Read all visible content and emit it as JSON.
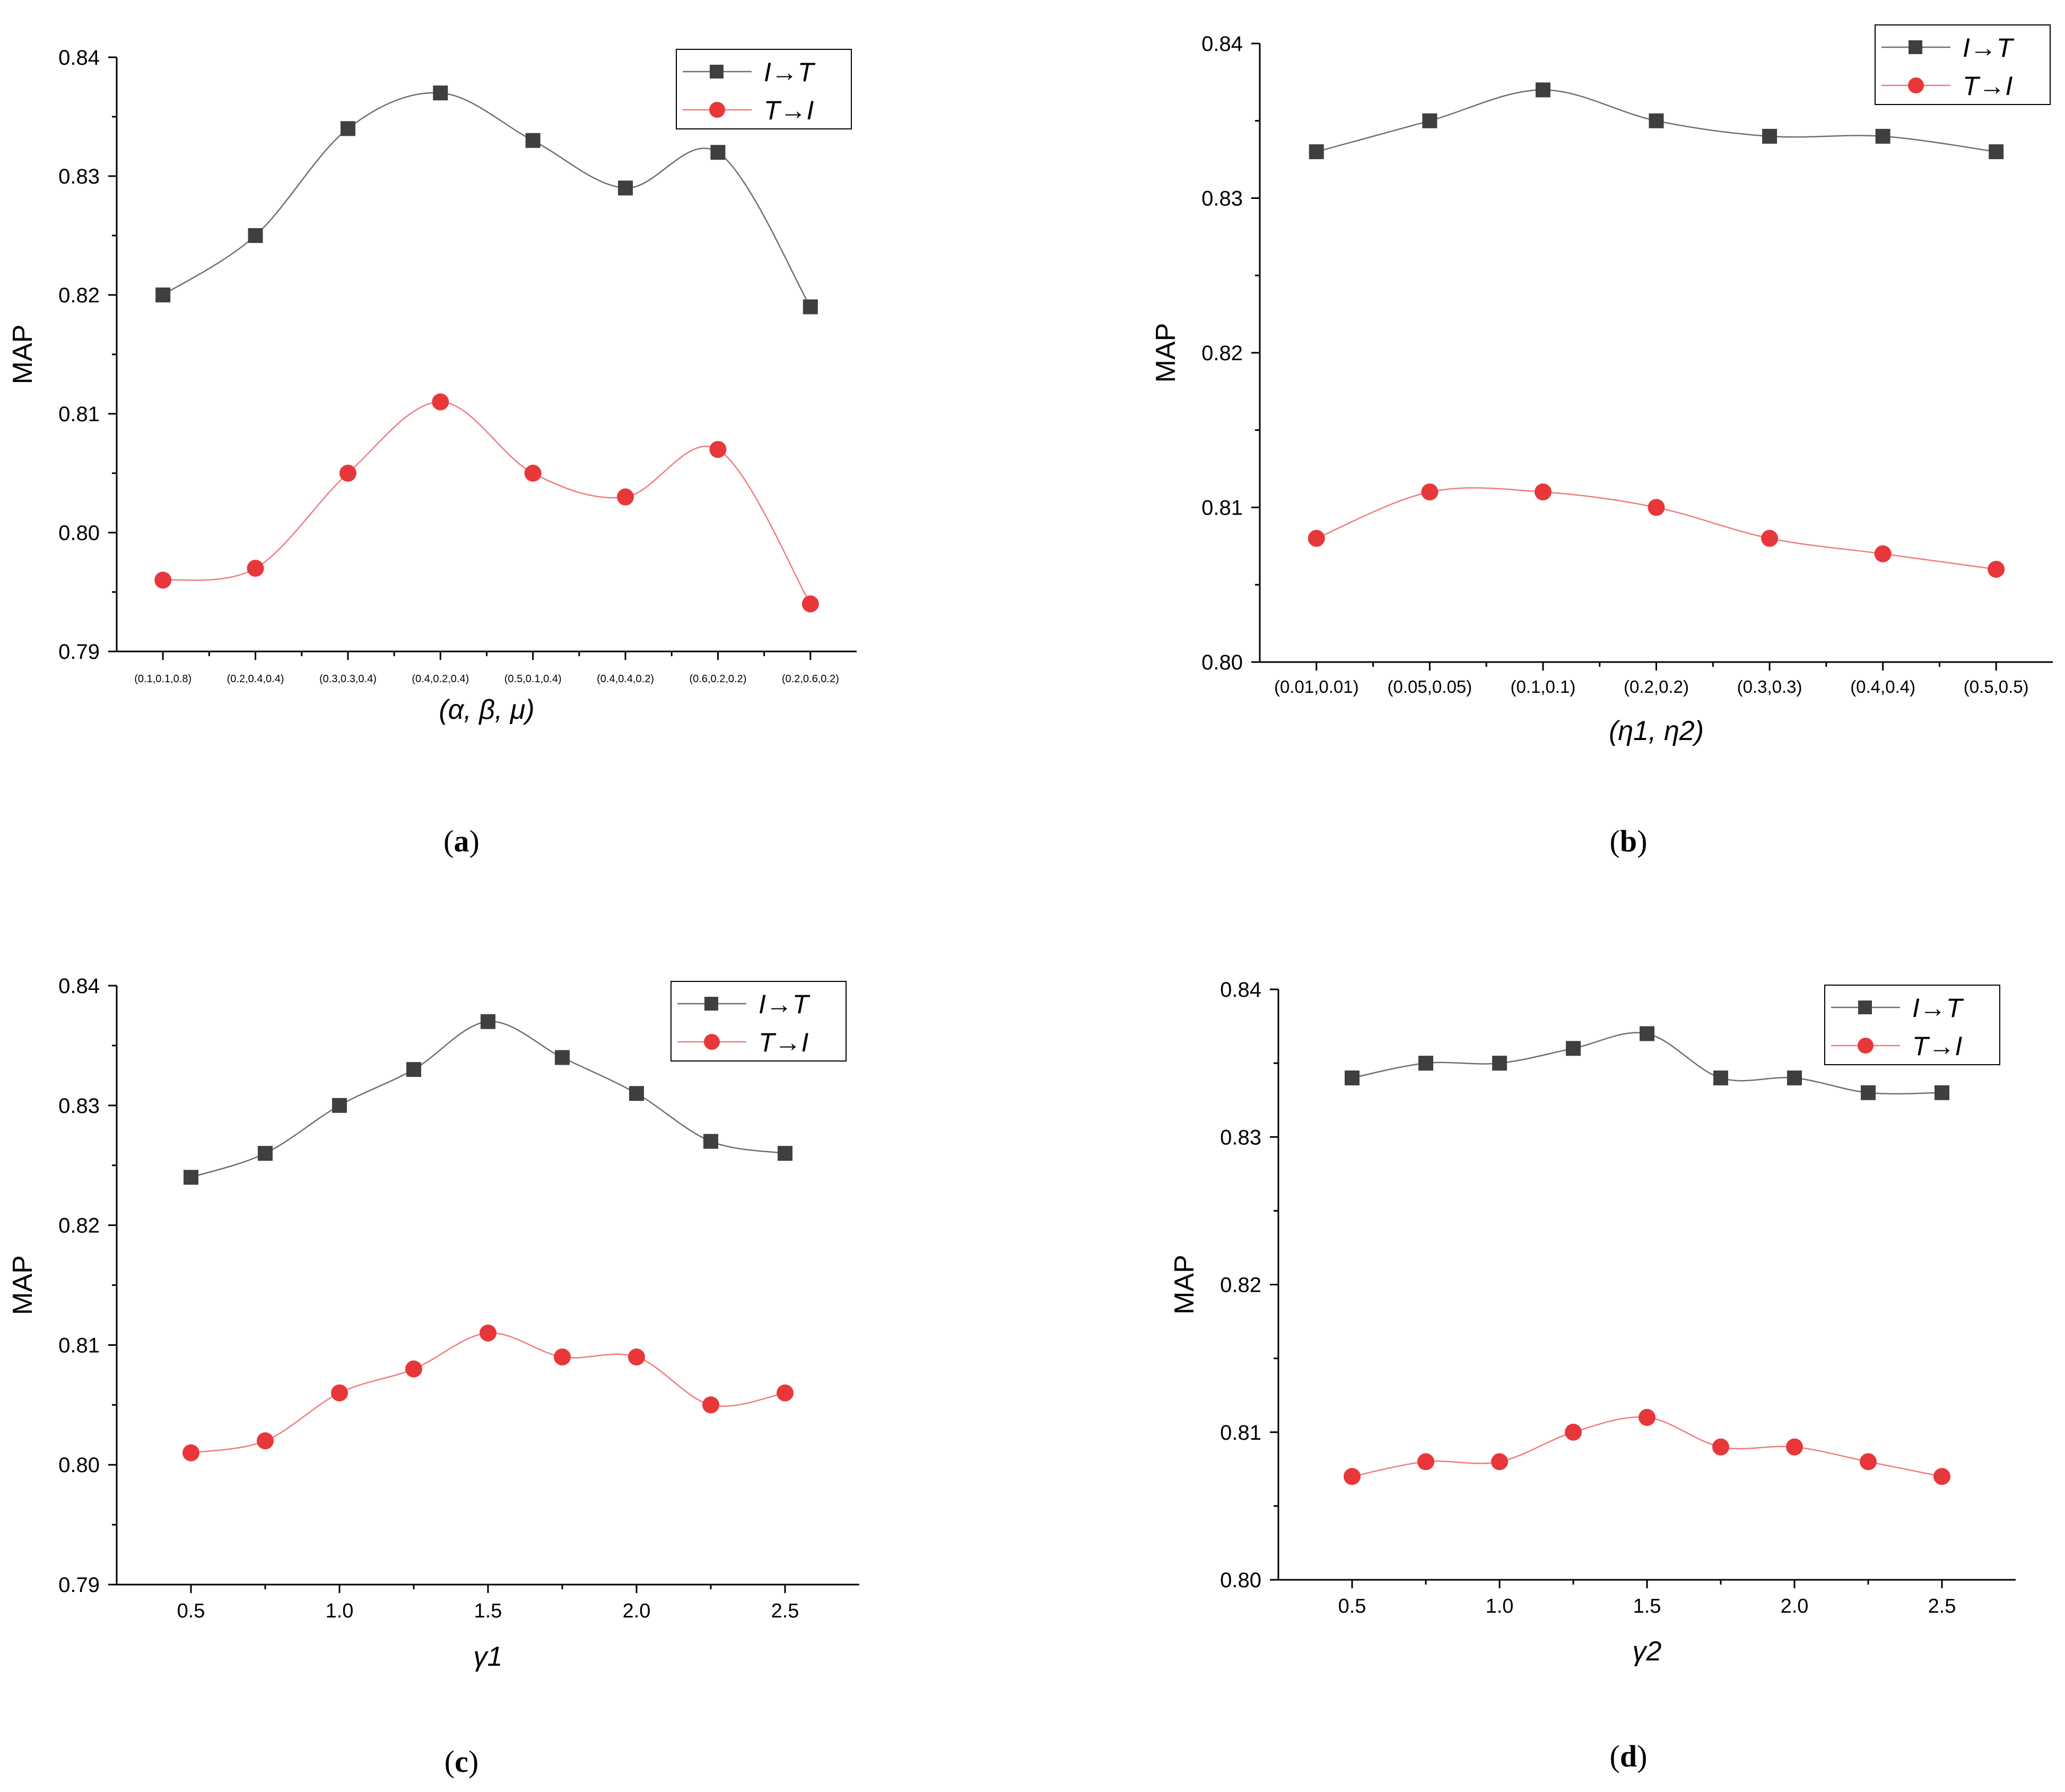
{
  "chart_data": [
    {
      "type": "line",
      "panel": "a",
      "caption_letter": "a",
      "xlabel": "(α,  β,  μ)",
      "ylabel": "MAP",
      "categories": [
        "(0.1,0.1,0.8)",
        "(0.2,0.4,0.4)",
        "(0.3,0.3,0.4)",
        "(0.4,0.2,0.4)",
        "(0.5,0.1,0.4)",
        "(0.4,0.4,0.2)",
        "(0.6,0.2,0.2)",
        "(0.2,0.6,0.2)"
      ],
      "ylim": [
        0.79,
        0.84
      ],
      "yticks": [
        "0.79",
        "0.80",
        "0.81",
        "0.82",
        "0.83",
        "0.84"
      ],
      "legend_position": "top-right",
      "series": [
        {
          "name": "I→T",
          "color": "#3f3f3f",
          "marker": "square",
          "values": [
            0.82,
            0.825,
            0.834,
            0.837,
            0.833,
            0.829,
            0.832,
            0.819
          ]
        },
        {
          "name": "T→I",
          "color": "#e8373a",
          "marker": "circle",
          "values": [
            0.796,
            0.797,
            0.805,
            0.811,
            0.805,
            0.803,
            0.807,
            0.794
          ]
        }
      ]
    },
    {
      "type": "line",
      "panel": "b",
      "caption_letter": "b",
      "xlabel": "(η1, η2)",
      "ylabel": "MAP",
      "categories": [
        "(0.01,0.01)",
        "(0.05,0.05)",
        "(0.1,0.1)",
        "(0.2,0.2)",
        "(0.3,0.3)",
        "(0.4,0.4)",
        "(0.5,0.5)"
      ],
      "ylim": [
        0.8,
        0.84
      ],
      "yticks": [
        "0.80",
        "0.81",
        "0.82",
        "0.83",
        "0.84"
      ],
      "legend_position": "top-right",
      "series": [
        {
          "name": "I→T",
          "color": "#3f3f3f",
          "marker": "square",
          "values": [
            0.833,
            0.835,
            0.837,
            0.835,
            0.834,
            0.834,
            0.833
          ]
        },
        {
          "name": "T→I",
          "color": "#e8373a",
          "marker": "circle",
          "values": [
            0.808,
            0.811,
            0.811,
            0.81,
            0.808,
            0.807,
            0.806
          ]
        }
      ]
    },
    {
      "type": "line",
      "panel": "c",
      "caption_letter": "c",
      "xlabel": "γ1",
      "ylabel": "MAP",
      "x": [
        0.5,
        0.75,
        1.0,
        1.25,
        1.5,
        1.75,
        2.0,
        2.25,
        2.5
      ],
      "xlim": [
        0.25,
        2.75
      ],
      "xticks": [
        "0.5",
        "1.0",
        "1.5",
        "2.0",
        "2.5"
      ],
      "ylim": [
        0.79,
        0.84
      ],
      "yticks": [
        "0.79",
        "0.80",
        "0.81",
        "0.82",
        "0.83",
        "0.84"
      ],
      "legend_position": "top-right",
      "series": [
        {
          "name": "I→T",
          "color": "#3f3f3f",
          "marker": "square",
          "values": [
            0.824,
            0.826,
            0.83,
            0.833,
            0.837,
            0.834,
            0.831,
            0.827,
            0.826
          ]
        },
        {
          "name": "T→I",
          "color": "#e8373a",
          "marker": "circle",
          "values": [
            0.801,
            0.802,
            0.806,
            0.808,
            0.811,
            0.809,
            0.809,
            0.805,
            0.806
          ]
        }
      ]
    },
    {
      "type": "line",
      "panel": "d",
      "caption_letter": "d",
      "xlabel": "γ2",
      "ylabel": "MAP",
      "x": [
        0.5,
        0.75,
        1.0,
        1.25,
        1.5,
        1.75,
        2.0,
        2.25,
        2.5
      ],
      "xlim": [
        0.25,
        2.75
      ],
      "xticks": [
        "0.5",
        "1.0",
        "1.5",
        "2.0",
        "2.5"
      ],
      "ylim": [
        0.8,
        0.84
      ],
      "yticks": [
        "0.80",
        "0.81",
        "0.82",
        "0.83",
        "0.84"
      ],
      "legend_position": "top-right",
      "series": [
        {
          "name": "I→T",
          "color": "#3f3f3f",
          "marker": "square",
          "values": [
            0.834,
            0.835,
            0.835,
            0.836,
            0.837,
            0.834,
            0.834,
            0.833,
            0.833
          ]
        },
        {
          "name": "T→I",
          "color": "#e8373a",
          "marker": "circle",
          "values": [
            0.807,
            0.808,
            0.808,
            0.81,
            0.811,
            0.809,
            0.809,
            0.808,
            0.807
          ]
        }
      ]
    }
  ]
}
